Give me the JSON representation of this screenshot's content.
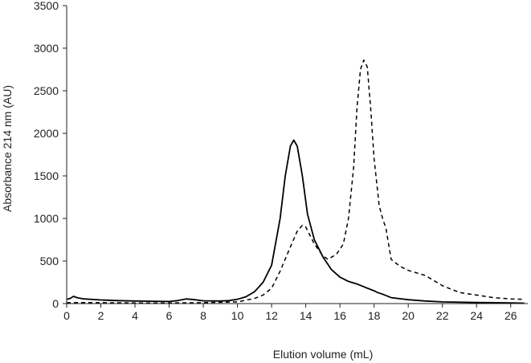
{
  "chart_data": {
    "type": "line",
    "title": "",
    "xlabel": "Elution volume (mL)",
    "ylabel": "Absorbance 214 nm (AU)",
    "xlim": [
      0,
      27
    ],
    "ylim": [
      0,
      3500
    ],
    "xticks": [
      0,
      2,
      4,
      6,
      8,
      10,
      12,
      14,
      16,
      18,
      20,
      22,
      24,
      26
    ],
    "yticks": [
      0,
      500,
      1000,
      1500,
      2000,
      2500,
      3000,
      3500
    ],
    "grid": false,
    "legend": "none",
    "series": [
      {
        "style": "solid",
        "color": "#000000",
        "points": [
          [
            0.0,
            50
          ],
          [
            0.2,
            60
          ],
          [
            0.4,
            85
          ],
          [
            0.6,
            70
          ],
          [
            1.0,
            55
          ],
          [
            2.0,
            42
          ],
          [
            3.0,
            35
          ],
          [
            4.0,
            30
          ],
          [
            5.0,
            27
          ],
          [
            6.0,
            25
          ],
          [
            6.5,
            35
          ],
          [
            7.0,
            55
          ],
          [
            7.5,
            45
          ],
          [
            8.0,
            32
          ],
          [
            9.0,
            30
          ],
          [
            9.5,
            35
          ],
          [
            10.0,
            50
          ],
          [
            10.5,
            80
          ],
          [
            11.0,
            140
          ],
          [
            11.5,
            250
          ],
          [
            12.0,
            450
          ],
          [
            12.5,
            1000
          ],
          [
            12.8,
            1500
          ],
          [
            13.1,
            1850
          ],
          [
            13.3,
            1920
          ],
          [
            13.5,
            1850
          ],
          [
            13.8,
            1500
          ],
          [
            14.1,
            1050
          ],
          [
            14.5,
            750
          ],
          [
            15.0,
            550
          ],
          [
            15.5,
            400
          ],
          [
            16.0,
            310
          ],
          [
            16.5,
            260
          ],
          [
            17.0,
            230
          ],
          [
            17.5,
            190
          ],
          [
            18.0,
            150
          ],
          [
            18.2,
            130
          ],
          [
            18.5,
            110
          ],
          [
            19.0,
            70
          ],
          [
            20.0,
            45
          ],
          [
            21.0,
            30
          ],
          [
            22.0,
            20
          ],
          [
            24.0,
            12
          ],
          [
            26.0,
            8
          ],
          [
            26.8,
            5
          ]
        ]
      },
      {
        "style": "dashed",
        "color": "#000000",
        "points": [
          [
            0.0,
            10
          ],
          [
            1.0,
            12
          ],
          [
            2.0,
            10
          ],
          [
            4.0,
            8
          ],
          [
            6.0,
            8
          ],
          [
            8.0,
            10
          ],
          [
            9.0,
            15
          ],
          [
            10.0,
            20
          ],
          [
            11.0,
            60
          ],
          [
            11.5,
            100
          ],
          [
            12.0,
            180
          ],
          [
            12.5,
            380
          ],
          [
            13.0,
            620
          ],
          [
            13.5,
            850
          ],
          [
            13.8,
            920
          ],
          [
            14.0,
            900
          ],
          [
            14.5,
            700
          ],
          [
            15.0,
            560
          ],
          [
            15.3,
            520
          ],
          [
            15.8,
            580
          ],
          [
            16.2,
            700
          ],
          [
            16.5,
            1000
          ],
          [
            16.8,
            1600
          ],
          [
            17.0,
            2300
          ],
          [
            17.2,
            2750
          ],
          [
            17.4,
            2860
          ],
          [
            17.6,
            2780
          ],
          [
            17.8,
            2300
          ],
          [
            18.0,
            1700
          ],
          [
            18.3,
            1150
          ],
          [
            18.5,
            1000
          ],
          [
            18.7,
            880
          ],
          [
            19.0,
            520
          ],
          [
            19.5,
            440
          ],
          [
            20.0,
            390
          ],
          [
            21.0,
            330
          ],
          [
            22.0,
            210
          ],
          [
            23.0,
            130
          ],
          [
            24.0,
            100
          ],
          [
            25.0,
            70
          ],
          [
            26.0,
            55
          ],
          [
            26.8,
            50
          ]
        ]
      }
    ]
  }
}
